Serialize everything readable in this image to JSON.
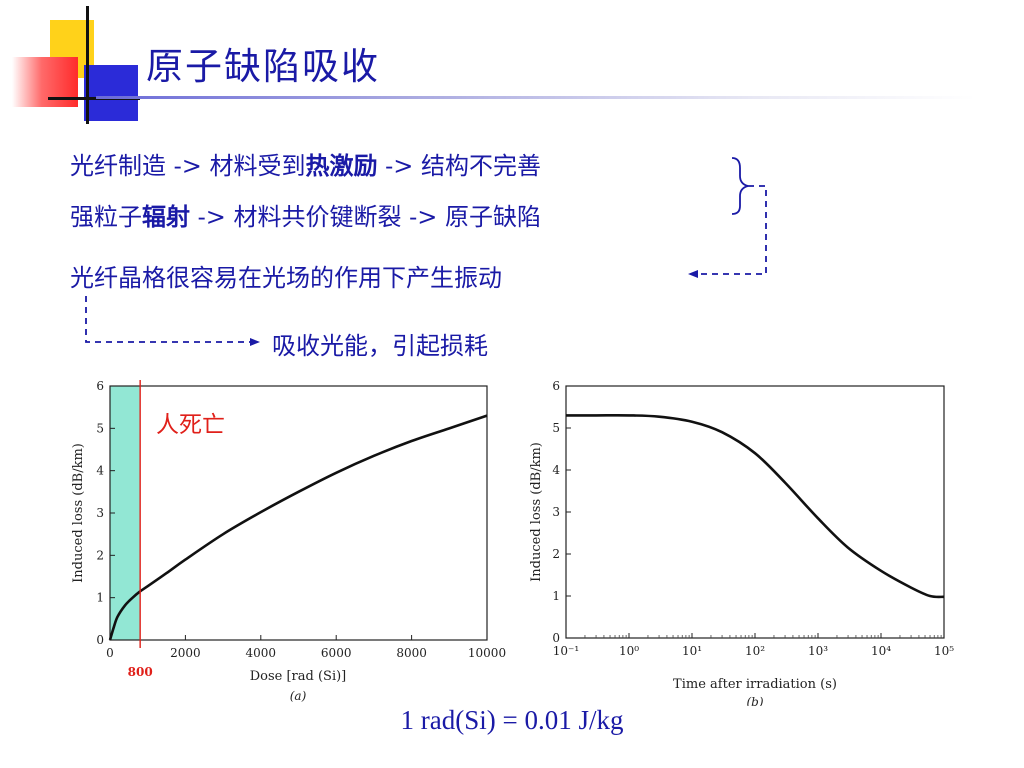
{
  "slide": {
    "title": "原子缺陷吸收",
    "lines": {
      "l1_a": "光纤制造 -> 材料受到",
      "l1_b": "热激励",
      "l1_c": " -> 结构不完善",
      "l2_a": "强粒子",
      "l2_b": "辐射",
      "l2_c": " -> 材料共价键断裂 -> 原子缺陷",
      "l3": "光纤晶格很容易在光场的作用下产生振动",
      "l4": "吸收光能，引起损耗"
    },
    "footer": "1 rad(Si) = 0.01 J/kg",
    "colors": {
      "text": "#1a1aa6",
      "accent_red": "#e0201a",
      "shade": "#7fe3cc"
    }
  },
  "chart_data": [
    {
      "type": "line",
      "xlabel": "Dose [rad (Si)]",
      "ylabel": "Induced loss (dB/km)",
      "caption": "(a)",
      "xlim": [
        0,
        10000
      ],
      "ylim": [
        0,
        6
      ],
      "xticks": [
        "0",
        "2000",
        "4000",
        "6000",
        "8000",
        "10000"
      ],
      "yticks": [
        "0",
        "1",
        "2",
        "3",
        "4",
        "5",
        "6"
      ],
      "x": [
        0,
        100,
        200,
        400,
        600,
        800,
        1000,
        1500,
        2000,
        3000,
        4000,
        5000,
        6000,
        7000,
        8000,
        9000,
        10000
      ],
      "y": [
        0,
        0.3,
        0.55,
        0.82,
        1.0,
        1.15,
        1.27,
        1.58,
        1.9,
        2.5,
        3.02,
        3.5,
        3.95,
        4.35,
        4.7,
        5.0,
        5.3
      ],
      "shaded_range": [
        0,
        800
      ],
      "marker_line_x": 800,
      "marker_label": "800",
      "annotation": "人死亡"
    },
    {
      "type": "line",
      "xlabel": "Time after irradiation (s)",
      "ylabel": "Induced loss (dB/km)",
      "caption": "(b)",
      "xscale": "log",
      "xlim": [
        0.1,
        100000
      ],
      "ylim": [
        0,
        6
      ],
      "xticks": [
        "10⁻¹",
        "10⁰",
        "10¹",
        "10²",
        "10³",
        "10⁴",
        "10⁵"
      ],
      "yticks": [
        "0",
        "1",
        "2",
        "3",
        "4",
        "5",
        "6"
      ],
      "x": [
        0.1,
        0.3,
        1,
        3,
        10,
        30,
        100,
        300,
        1000,
        3000,
        10000,
        30000,
        60000,
        100000
      ],
      "y": [
        5.3,
        5.3,
        5.3,
        5.27,
        5.15,
        4.9,
        4.4,
        3.7,
        2.85,
        2.15,
        1.6,
        1.2,
        1.0,
        0.98
      ]
    }
  ]
}
